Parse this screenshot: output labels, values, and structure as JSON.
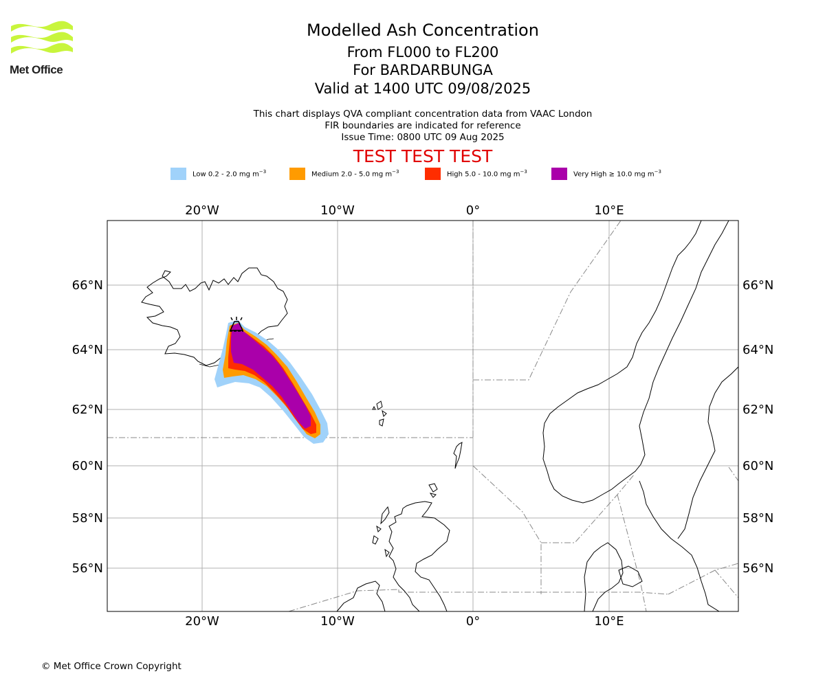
{
  "logo": {
    "text": "Met Office"
  },
  "header": {
    "title": "Modelled Ash Concentration",
    "levels": "From FL000 to FL200",
    "volcano": "For BARDARBUNGA",
    "valid": "Valid at 1400 UTC 09/08/2025",
    "note1": "This chart displays QVA compliant concentration data from VAAC London",
    "note2": "FIR boundaries are indicated for reference",
    "issue": "Issue Time: 0800 UTC 09 Aug 2025",
    "test": "TEST TEST TEST"
  },
  "legend": [
    {
      "label": "Low 0.2 - 2.0 mg m",
      "sup": "−3",
      "color": "#a0d2fa"
    },
    {
      "label": "Medium 2.0 - 5.0 mg m",
      "sup": "−3",
      "color": "#ff9b00"
    },
    {
      "label": "High 5.0 - 10.0 mg m",
      "sup": "−3",
      "color": "#ff2d00"
    },
    {
      "label": "Very High  ≥  10.0 mg m",
      "sup": "−3",
      "color": "#aa00aa"
    }
  ],
  "map": {
    "lon_labels": [
      "20°W",
      "10°W",
      "0°",
      "10°E"
    ],
    "lat_labels": [
      "66°N",
      "64°N",
      "62°N",
      "60°N",
      "58°N",
      "56°N"
    ],
    "volcano_icon": "volcano-icon"
  },
  "footer": {
    "copyright": "© Met Office Crown Copyright"
  }
}
